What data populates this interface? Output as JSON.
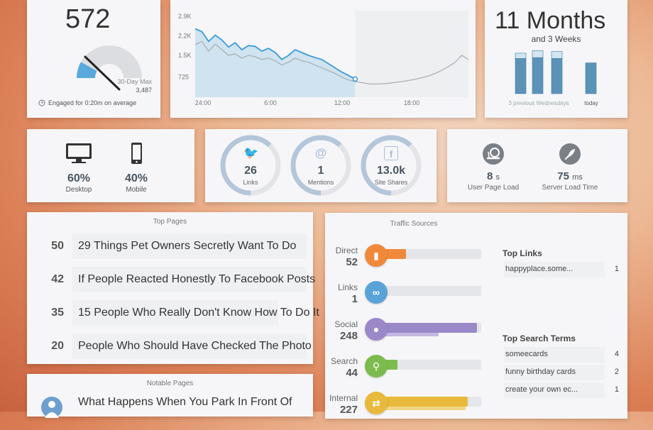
{
  "engaged": {
    "count": "572",
    "max_label": "30-Day Max",
    "max_value": "3,487",
    "gauge_fraction": 0.164,
    "footer": "Engaged for 0:20m on average"
  },
  "visits_chart": {
    "chart_data": {
      "type": "line",
      "x_ticks": [
        "24:00",
        "6:00",
        "12:00",
        "18:00"
      ],
      "y_ticks": [
        "2.9K",
        "2.2K",
        "1.5K",
        "725"
      ],
      "series": [
        {
          "values": [
            2450,
            2350,
            2000,
            2220,
            2050,
            1800,
            1950,
            1700,
            1850,
            1820,
            1650,
            1750,
            1600,
            1350,
            1500,
            1700,
            1600,
            1500,
            1420,
            1350,
            1200,
            1050,
            900,
            780,
            650
          ]
        },
        {
          "values": [
            1880,
            2000,
            1650,
            1900,
            1700,
            1500,
            1550,
            1400,
            1500,
            1450,
            1350,
            1400,
            1300,
            1150,
            1250,
            1400,
            1300,
            1250,
            1150,
            1050,
            950,
            850,
            720,
            620,
            560,
            520,
            480,
            470,
            480,
            500,
            530,
            560,
            600,
            640,
            700,
            760,
            850,
            960,
            1100,
            1250,
            1500,
            1350
          ]
        }
      ]
    }
  },
  "months": {
    "title": "11 Months",
    "subtitle": "and 3 Weeks",
    "left_label": "3 previous Wednesdays",
    "right_label": "today",
    "chart_data": {
      "type": "bar",
      "values": [
        0.8,
        0.82,
        0.8,
        0.7
      ],
      "caps": [
        0.12,
        0.16,
        0.16,
        0
      ]
    }
  },
  "devices": [
    {
      "pct": "60%",
      "label": "Desktop"
    },
    {
      "pct": "40%",
      "label": "Mobile"
    }
  ],
  "social": [
    {
      "value": "26",
      "label": "Links",
      "fraction": 0.62
    },
    {
      "value": "1",
      "label": "Mentions",
      "fraction": 0.62
    },
    {
      "value": "13.0k",
      "label": "Site Shares",
      "fraction": 0.62
    }
  ],
  "load": [
    {
      "value": "8",
      "unit": "s",
      "label": "User Page Load"
    },
    {
      "value": "75",
      "unit": "ms",
      "label": "Server Load Time"
    }
  ],
  "top_pages": {
    "title": "Top Pages",
    "items": [
      {
        "count": "50",
        "title": "29 Things Pet Owners Secretly Want To Do"
      },
      {
        "count": "42",
        "title": "If People Reacted Honestly To Facebook Posts"
      },
      {
        "count": "35",
        "title": "15 People Who Really Don't Know How To Do It"
      },
      {
        "count": "20",
        "title": "People Who Should Have Checked The Photo"
      }
    ]
  },
  "notable_pages": {
    "title": "Notable Pages",
    "items": [
      {
        "title": "What Happens When You Park In Front Of"
      }
    ]
  },
  "traffic": {
    "title": "Traffic Sources",
    "sources": [
      {
        "name": "Direct",
        "count": "52",
        "fill": 0.33,
        "fill2": 0.12,
        "color": "#f08a3a",
        "color2": "#f6b98a",
        "icon": "bookmark-icon",
        "glyph": "▮"
      },
      {
        "name": "Links",
        "count": "1",
        "fill": 0.05,
        "fill2": 0.05,
        "color": "#5aa3d8",
        "color2": "#9fcbea",
        "icon": "link-icon",
        "glyph": "∞"
      },
      {
        "name": "Social",
        "count": "248",
        "fill": 0.96,
        "fill2": 0.62,
        "color": "#9b88c9",
        "color2": "#c4b8e2",
        "icon": "chat-icon",
        "glyph": "●"
      },
      {
        "name": "Search",
        "count": "44",
        "fill": 0.25,
        "fill2": 0.06,
        "color": "#7dbb4e",
        "color2": "#b6db98",
        "icon": "search-icon",
        "glyph": "⚲"
      },
      {
        "name": "Internal",
        "count": "227",
        "fill": 0.88,
        "fill2": 0.86,
        "color": "#e8b93c",
        "color2": "#f2d683",
        "icon": "swap-icon",
        "glyph": "⇄"
      }
    ],
    "top_links_title": "Top Links",
    "top_links": [
      {
        "name": "happyplace.some...",
        "count": "1"
      }
    ],
    "top_search_title": "Top Search Terms",
    "top_search": [
      {
        "name": "someecards",
        "count": "4"
      },
      {
        "name": "funny birthday cards",
        "count": "2"
      },
      {
        "name": "create your own ec...",
        "count": "1"
      }
    ]
  }
}
